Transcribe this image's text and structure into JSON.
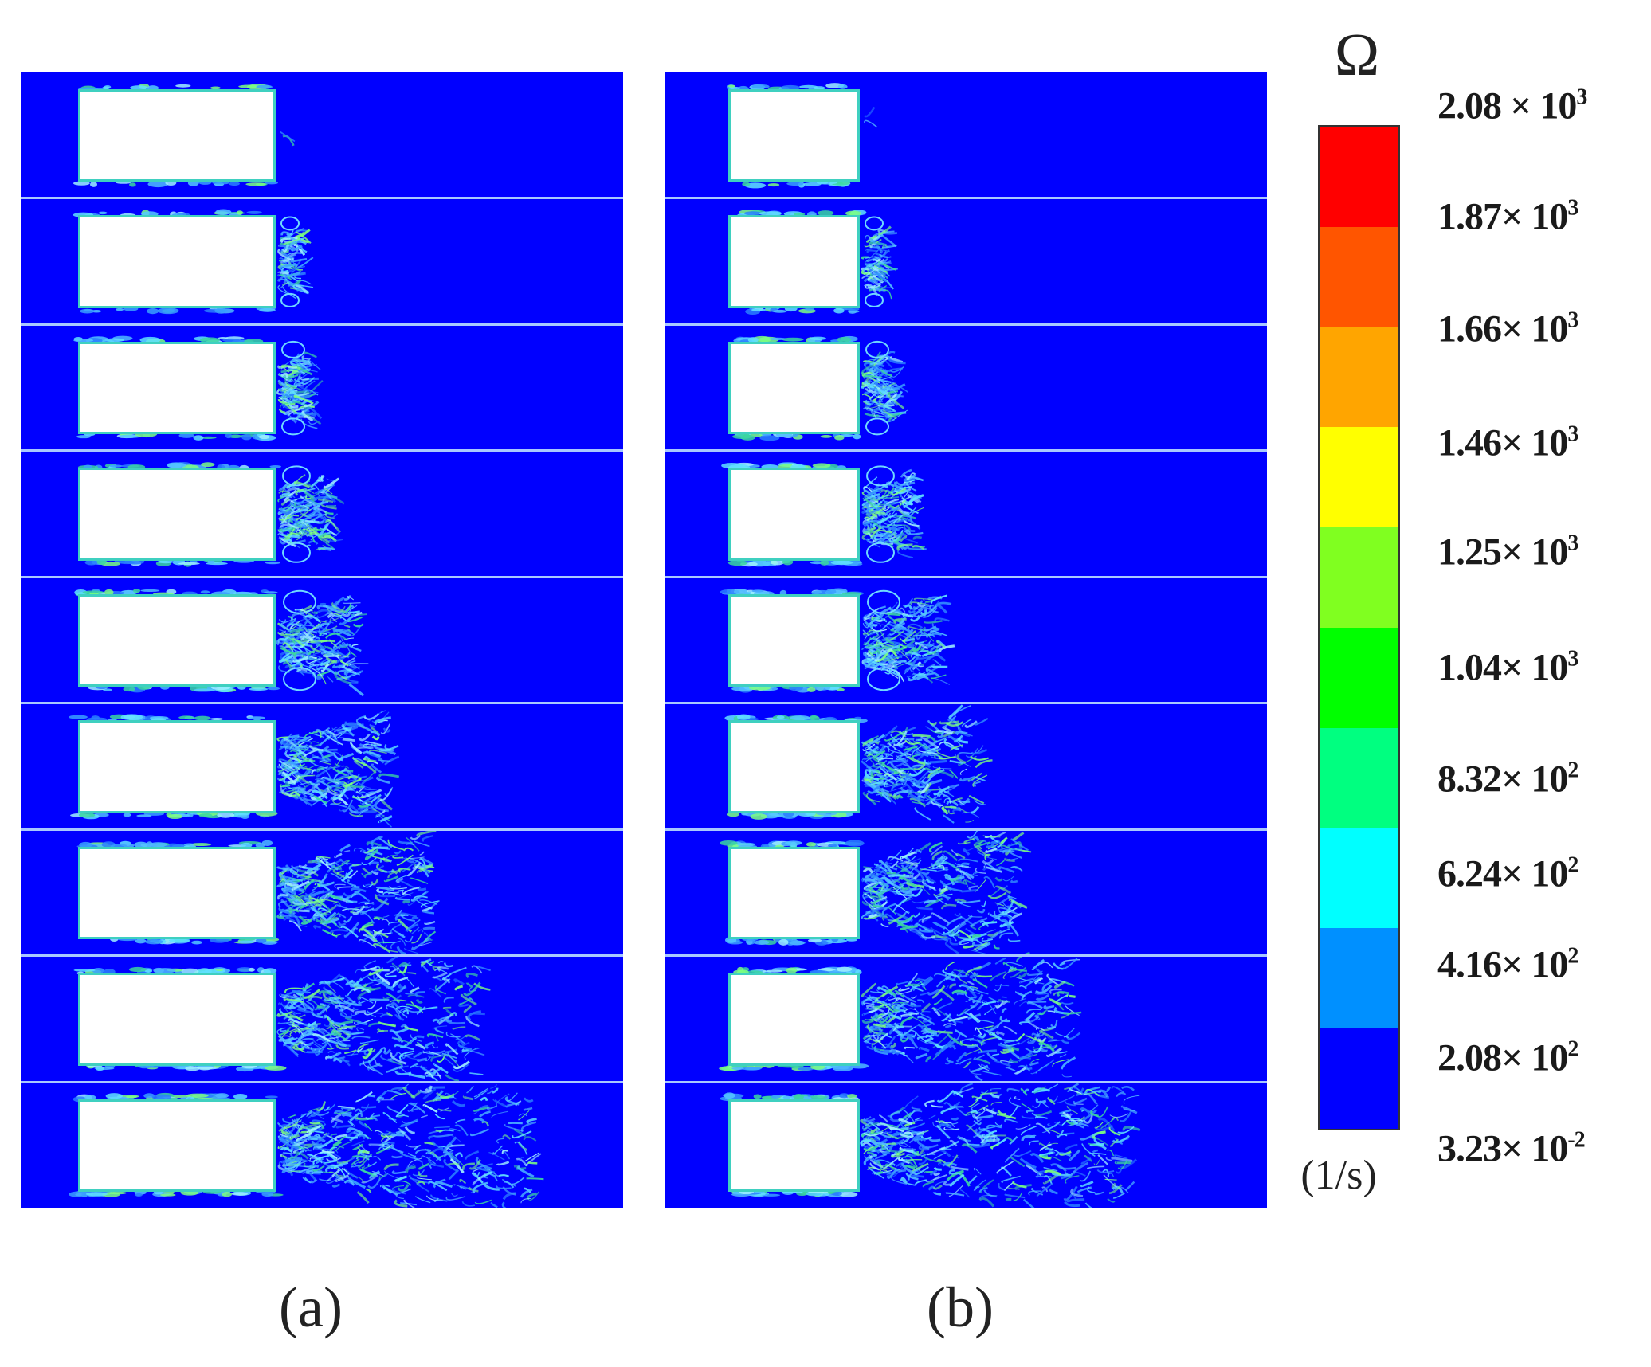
{
  "figure": {
    "panel_labels": [
      "(a)",
      "(b)"
    ],
    "panel_count": 2,
    "frames_per_panel": 9
  },
  "colorbar": {
    "symbol": "Ω",
    "unit": "(1/s)",
    "ticks": [
      {
        "mantissa": "2.08 ×",
        "base": "10",
        "exp": "3"
      },
      {
        "mantissa": "1.87×",
        "base": "10",
        "exp": "3"
      },
      {
        "mantissa": "1.66×",
        "base": "10",
        "exp": "3"
      },
      {
        "mantissa": "1.46×",
        "base": "10",
        "exp": "3"
      },
      {
        "mantissa": "1.25×",
        "base": "10",
        "exp": "3"
      },
      {
        "mantissa": "1.04×",
        "base": "10",
        "exp": "3"
      },
      {
        "mantissa": "8.32×",
        "base": "10",
        "exp": "2"
      },
      {
        "mantissa": "6.24×",
        "base": "10",
        "exp": "2"
      },
      {
        "mantissa": "4.16×",
        "base": "10",
        "exp": "2"
      },
      {
        "mantissa": "2.08×",
        "base": "10",
        "exp": "2"
      },
      {
        "mantissa": "3.23×",
        "base": "10",
        "exp": "-2"
      }
    ],
    "colors": [
      "#ff0000",
      "#ff5500",
      "#ffa500",
      "#ffff00",
      "#80ff20",
      "#00ff00",
      "#00ff80",
      "#00ffff",
      "#0090ff",
      "#0000ff"
    ]
  },
  "palette": {
    "background": "#0000ff",
    "obstacle": "#ffffff",
    "separator": "#a8c8ff"
  }
}
